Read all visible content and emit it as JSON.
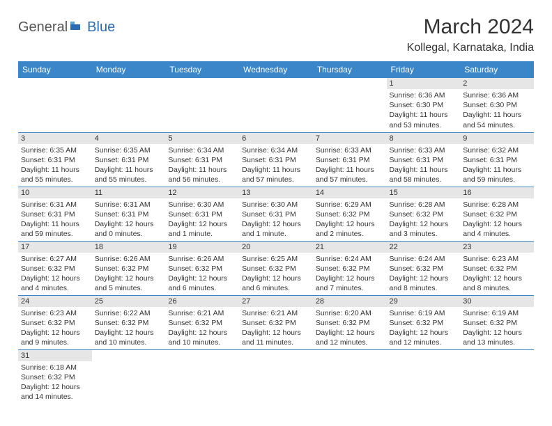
{
  "logo": {
    "text1": "General",
    "text2": "Blue"
  },
  "title": "March 2024",
  "location": "Kollegal, Karnataka, India",
  "colors": {
    "header_bg": "#3b86c8",
    "header_text": "#ffffff",
    "daynum_bg": "#e6e6e6",
    "border": "#3b86c8",
    "text": "#333333",
    "logo_gray": "#555555",
    "logo_blue": "#2a6db5"
  },
  "weekdays": [
    "Sunday",
    "Monday",
    "Tuesday",
    "Wednesday",
    "Thursday",
    "Friday",
    "Saturday"
  ],
  "weeks": [
    [
      {
        "n": "",
        "sunrise": "",
        "sunset": "",
        "daylight": ""
      },
      {
        "n": "",
        "sunrise": "",
        "sunset": "",
        "daylight": ""
      },
      {
        "n": "",
        "sunrise": "",
        "sunset": "",
        "daylight": ""
      },
      {
        "n": "",
        "sunrise": "",
        "sunset": "",
        "daylight": ""
      },
      {
        "n": "",
        "sunrise": "",
        "sunset": "",
        "daylight": ""
      },
      {
        "n": "1",
        "sunrise": "Sunrise: 6:36 AM",
        "sunset": "Sunset: 6:30 PM",
        "daylight": "Daylight: 11 hours and 53 minutes."
      },
      {
        "n": "2",
        "sunrise": "Sunrise: 6:36 AM",
        "sunset": "Sunset: 6:30 PM",
        "daylight": "Daylight: 11 hours and 54 minutes."
      }
    ],
    [
      {
        "n": "3",
        "sunrise": "Sunrise: 6:35 AM",
        "sunset": "Sunset: 6:31 PM",
        "daylight": "Daylight: 11 hours and 55 minutes."
      },
      {
        "n": "4",
        "sunrise": "Sunrise: 6:35 AM",
        "sunset": "Sunset: 6:31 PM",
        "daylight": "Daylight: 11 hours and 55 minutes."
      },
      {
        "n": "5",
        "sunrise": "Sunrise: 6:34 AM",
        "sunset": "Sunset: 6:31 PM",
        "daylight": "Daylight: 11 hours and 56 minutes."
      },
      {
        "n": "6",
        "sunrise": "Sunrise: 6:34 AM",
        "sunset": "Sunset: 6:31 PM",
        "daylight": "Daylight: 11 hours and 57 minutes."
      },
      {
        "n": "7",
        "sunrise": "Sunrise: 6:33 AM",
        "sunset": "Sunset: 6:31 PM",
        "daylight": "Daylight: 11 hours and 57 minutes."
      },
      {
        "n": "8",
        "sunrise": "Sunrise: 6:33 AM",
        "sunset": "Sunset: 6:31 PM",
        "daylight": "Daylight: 11 hours and 58 minutes."
      },
      {
        "n": "9",
        "sunrise": "Sunrise: 6:32 AM",
        "sunset": "Sunset: 6:31 PM",
        "daylight": "Daylight: 11 hours and 59 minutes."
      }
    ],
    [
      {
        "n": "10",
        "sunrise": "Sunrise: 6:31 AM",
        "sunset": "Sunset: 6:31 PM",
        "daylight": "Daylight: 11 hours and 59 minutes."
      },
      {
        "n": "11",
        "sunrise": "Sunrise: 6:31 AM",
        "sunset": "Sunset: 6:31 PM",
        "daylight": "Daylight: 12 hours and 0 minutes."
      },
      {
        "n": "12",
        "sunrise": "Sunrise: 6:30 AM",
        "sunset": "Sunset: 6:31 PM",
        "daylight": "Daylight: 12 hours and 1 minute."
      },
      {
        "n": "13",
        "sunrise": "Sunrise: 6:30 AM",
        "sunset": "Sunset: 6:31 PM",
        "daylight": "Daylight: 12 hours and 1 minute."
      },
      {
        "n": "14",
        "sunrise": "Sunrise: 6:29 AM",
        "sunset": "Sunset: 6:32 PM",
        "daylight": "Daylight: 12 hours and 2 minutes."
      },
      {
        "n": "15",
        "sunrise": "Sunrise: 6:28 AM",
        "sunset": "Sunset: 6:32 PM",
        "daylight": "Daylight: 12 hours and 3 minutes."
      },
      {
        "n": "16",
        "sunrise": "Sunrise: 6:28 AM",
        "sunset": "Sunset: 6:32 PM",
        "daylight": "Daylight: 12 hours and 4 minutes."
      }
    ],
    [
      {
        "n": "17",
        "sunrise": "Sunrise: 6:27 AM",
        "sunset": "Sunset: 6:32 PM",
        "daylight": "Daylight: 12 hours and 4 minutes."
      },
      {
        "n": "18",
        "sunrise": "Sunrise: 6:26 AM",
        "sunset": "Sunset: 6:32 PM",
        "daylight": "Daylight: 12 hours and 5 minutes."
      },
      {
        "n": "19",
        "sunrise": "Sunrise: 6:26 AM",
        "sunset": "Sunset: 6:32 PM",
        "daylight": "Daylight: 12 hours and 6 minutes."
      },
      {
        "n": "20",
        "sunrise": "Sunrise: 6:25 AM",
        "sunset": "Sunset: 6:32 PM",
        "daylight": "Daylight: 12 hours and 6 minutes."
      },
      {
        "n": "21",
        "sunrise": "Sunrise: 6:24 AM",
        "sunset": "Sunset: 6:32 PM",
        "daylight": "Daylight: 12 hours and 7 minutes."
      },
      {
        "n": "22",
        "sunrise": "Sunrise: 6:24 AM",
        "sunset": "Sunset: 6:32 PM",
        "daylight": "Daylight: 12 hours and 8 minutes."
      },
      {
        "n": "23",
        "sunrise": "Sunrise: 6:23 AM",
        "sunset": "Sunset: 6:32 PM",
        "daylight": "Daylight: 12 hours and 8 minutes."
      }
    ],
    [
      {
        "n": "24",
        "sunrise": "Sunrise: 6:23 AM",
        "sunset": "Sunset: 6:32 PM",
        "daylight": "Daylight: 12 hours and 9 minutes."
      },
      {
        "n": "25",
        "sunrise": "Sunrise: 6:22 AM",
        "sunset": "Sunset: 6:32 PM",
        "daylight": "Daylight: 12 hours and 10 minutes."
      },
      {
        "n": "26",
        "sunrise": "Sunrise: 6:21 AM",
        "sunset": "Sunset: 6:32 PM",
        "daylight": "Daylight: 12 hours and 10 minutes."
      },
      {
        "n": "27",
        "sunrise": "Sunrise: 6:21 AM",
        "sunset": "Sunset: 6:32 PM",
        "daylight": "Daylight: 12 hours and 11 minutes."
      },
      {
        "n": "28",
        "sunrise": "Sunrise: 6:20 AM",
        "sunset": "Sunset: 6:32 PM",
        "daylight": "Daylight: 12 hours and 12 minutes."
      },
      {
        "n": "29",
        "sunrise": "Sunrise: 6:19 AM",
        "sunset": "Sunset: 6:32 PM",
        "daylight": "Daylight: 12 hours and 12 minutes."
      },
      {
        "n": "30",
        "sunrise": "Sunrise: 6:19 AM",
        "sunset": "Sunset: 6:32 PM",
        "daylight": "Daylight: 12 hours and 13 minutes."
      }
    ],
    [
      {
        "n": "31",
        "sunrise": "Sunrise: 6:18 AM",
        "sunset": "Sunset: 6:32 PM",
        "daylight": "Daylight: 12 hours and 14 minutes."
      },
      {
        "n": "",
        "sunrise": "",
        "sunset": "",
        "daylight": ""
      },
      {
        "n": "",
        "sunrise": "",
        "sunset": "",
        "daylight": ""
      },
      {
        "n": "",
        "sunrise": "",
        "sunset": "",
        "daylight": ""
      },
      {
        "n": "",
        "sunrise": "",
        "sunset": "",
        "daylight": ""
      },
      {
        "n": "",
        "sunrise": "",
        "sunset": "",
        "daylight": ""
      },
      {
        "n": "",
        "sunrise": "",
        "sunset": "",
        "daylight": ""
      }
    ]
  ]
}
